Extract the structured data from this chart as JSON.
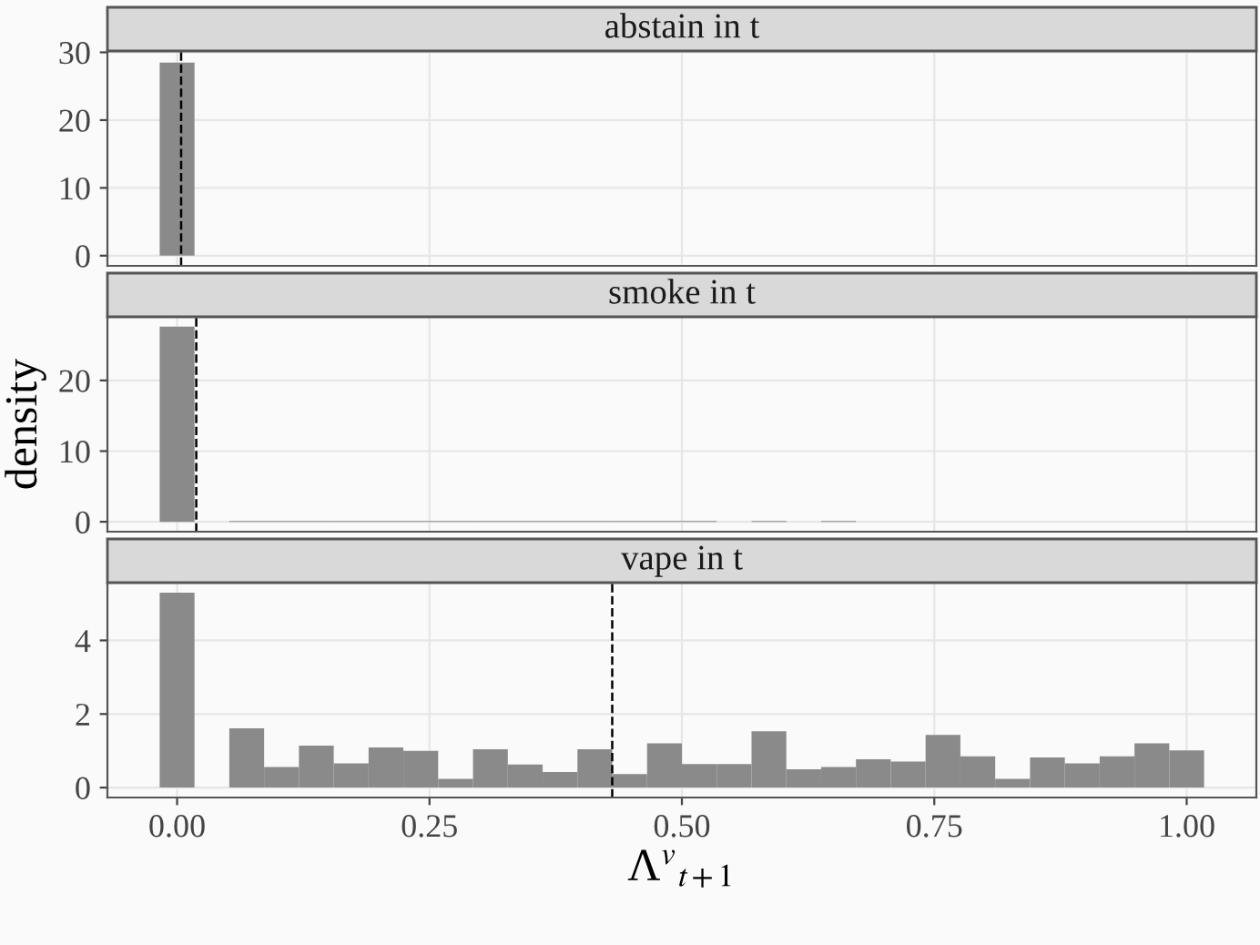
{
  "chart_data": [
    {
      "type": "histogram",
      "title": "abstain in t",
      "bins": [
        -0.01724,
        0.01724,
        0.05172,
        0.08621,
        0.12069,
        0.15517,
        0.18966,
        0.22414,
        0.25862,
        0.2931,
        0.32759,
        0.36207,
        0.39655,
        0.43103,
        0.46552,
        0.5,
        0.53448,
        0.56897,
        0.60345,
        0.63793,
        0.67241,
        0.7069,
        0.74138,
        0.77586,
        0.81034,
        0.84483,
        0.87931,
        0.91379,
        0.94828,
        0.98276,
        1.01724
      ],
      "values": [
        28.5,
        0,
        0,
        0,
        0,
        0,
        0,
        0,
        0,
        0,
        0,
        0,
        0,
        0,
        0,
        0,
        0,
        0,
        0,
        0,
        0,
        0,
        0,
        0,
        0,
        0,
        0,
        0,
        0,
        0
      ],
      "color": "#8a8a8a",
      "xlim": [
        -0.069,
        1.069
      ],
      "ylim": [
        -1.5,
        30.2
      ],
      "xticks": [
        0,
        0.25,
        0.5,
        0.75,
        1
      ],
      "yticks": [
        0,
        10,
        20,
        30
      ],
      "ref_lines": [
        {
          "axis": "x",
          "value": 0.004,
          "color": "#000000",
          "line_style": "dashed"
        }
      ],
      "grid": true,
      "tick_labels": "y"
    },
    {
      "type": "histogram",
      "title": "smoke in t",
      "ylabel": "density",
      "bins": [
        -0.01724,
        0.01724,
        0.05172,
        0.08621,
        0.12069,
        0.15517,
        0.18966,
        0.22414,
        0.25862,
        0.2931,
        0.32759,
        0.36207,
        0.39655,
        0.43103,
        0.46552,
        0.5,
        0.53448,
        0.56897,
        0.60345,
        0.63793,
        0.67241,
        0.7069,
        0.74138,
        0.77586,
        0.81034,
        0.84483,
        0.87931,
        0.91379,
        0.94828,
        0.98276,
        1.01724
      ],
      "values": [
        27.6,
        0,
        0.1,
        0.1,
        0.1,
        0.1,
        0.1,
        0.1,
        0.1,
        0.1,
        0.1,
        0.1,
        0.1,
        0.1,
        0.1,
        0.1,
        0,
        0.1,
        0,
        0.1,
        0,
        0,
        0,
        0,
        0,
        0,
        0,
        0,
        0,
        0
      ],
      "color": "#8a8a8a",
      "xlim": [
        -0.069,
        1.069
      ],
      "ylim": [
        -1.4,
        29.0
      ],
      "xticks": [
        0,
        0.25,
        0.5,
        0.75,
        1
      ],
      "yticks": [
        0,
        10,
        20
      ],
      "ref_lines": [
        {
          "axis": "x",
          "value": 0.019,
          "color": "#000000",
          "line_style": "dashed"
        }
      ],
      "grid": true,
      "tick_labels": "y"
    },
    {
      "type": "histogram",
      "title": "vape in t",
      "xlabel": "Λ$^{v}$$_{t+1}$",
      "bins": [
        -0.01724,
        0.01724,
        0.05172,
        0.08621,
        0.12069,
        0.15517,
        0.18966,
        0.22414,
        0.25862,
        0.2931,
        0.32759,
        0.36207,
        0.39655,
        0.43103,
        0.46552,
        0.5,
        0.53448,
        0.56897,
        0.60345,
        0.63793,
        0.67241,
        0.7069,
        0.74138,
        0.77586,
        0.81034,
        0.84483,
        0.87931,
        0.91379,
        0.94828,
        0.98276,
        1.01724
      ],
      "values": [
        5.3,
        0,
        1.61,
        0.56,
        1.14,
        0.66,
        1.09,
        1.0,
        0.24,
        1.04,
        0.63,
        0.42,
        1.04,
        0.37,
        1.2,
        0.64,
        0.64,
        1.53,
        0.5,
        0.56,
        0.77,
        0.71,
        1.43,
        0.85,
        0.24,
        0.82,
        0.66,
        0.85,
        1.2,
        1.01
      ],
      "color": "#8a8a8a",
      "xlim": [
        -0.069,
        1.069
      ],
      "ylim": [
        -0.27,
        5.57
      ],
      "xticks": [
        {
          "value": 0,
          "label": "0.00"
        },
        {
          "value": 0.25,
          "label": "0.25"
        },
        {
          "value": 0.5,
          "label": "0.50"
        },
        {
          "value": 0.75,
          "label": "0.75"
        },
        {
          "value": 1,
          "label": "1.00"
        }
      ],
      "yticks": [
        0,
        2,
        4
      ],
      "ref_lines": [
        {
          "axis": "x",
          "value": 0.431,
          "color": "#000000",
          "line_style": "dashed"
        }
      ],
      "grid": true
    }
  ]
}
